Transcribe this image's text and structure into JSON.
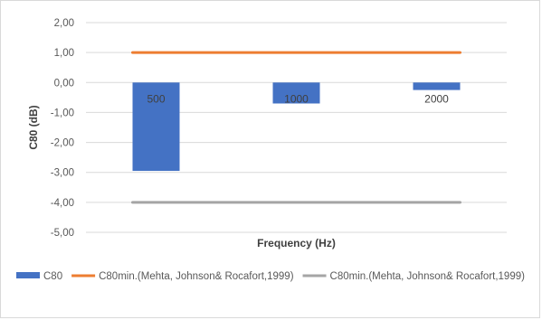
{
  "chart_data": {
    "type": "bar",
    "title": "",
    "xlabel": "Frequency (Hz)",
    "ylabel": "C80 (dB)",
    "ylim": [
      -5,
      2
    ],
    "yticks": [
      2,
      1,
      0,
      -1,
      -2,
      -3,
      -4,
      -5
    ],
    "ytick_labels": [
      "2,00",
      "1,00",
      "0,00",
      "-1,00",
      "-2,00",
      "-3,00",
      "-4,00",
      "-5,00"
    ],
    "categories": [
      "500",
      "1000",
      "2000"
    ],
    "series": [
      {
        "name": "C80",
        "kind": "bar",
        "values": [
          -2.95,
          -0.7,
          -0.25
        ],
        "color": "#4472c4"
      },
      {
        "name": "C80min.(Mehta, Johnson& Rocafort,1999)",
        "kind": "line",
        "values": [
          1,
          1,
          1
        ],
        "color": "#ed7d31"
      },
      {
        "name": "C80min.(Mehta, Johnson& Rocafort,1999)",
        "kind": "line",
        "values": [
          -4,
          -4,
          -4
        ],
        "color": "#a5a5a5"
      }
    ],
    "grid": true,
    "legend_position": "bottom"
  }
}
